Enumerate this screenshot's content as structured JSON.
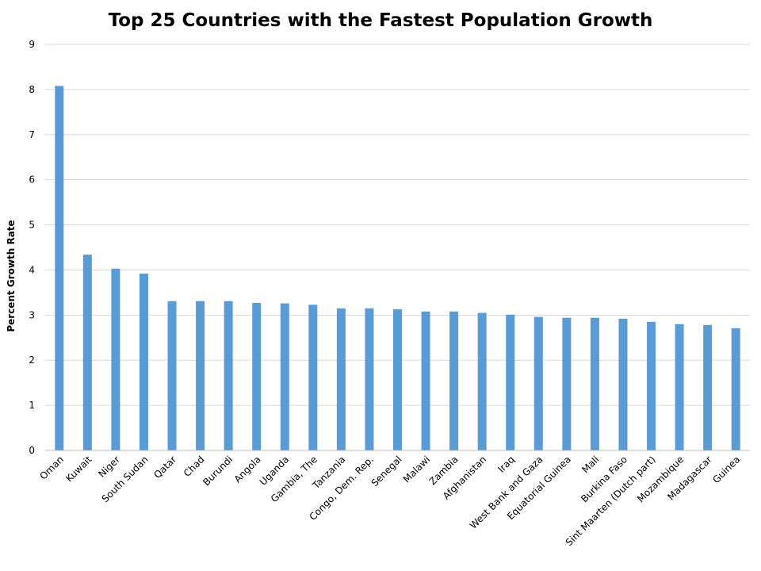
{
  "chart_data": {
    "type": "bar",
    "title": "Top 25 Countries with the Fastest Population Growth",
    "xlabel": "",
    "ylabel": "Percent Growth Rate",
    "ylim": [
      0,
      9
    ],
    "yticks": [
      0,
      1,
      2,
      3,
      4,
      5,
      6,
      7,
      8,
      9
    ],
    "grid": true,
    "bar_color": "#5b9bd5",
    "categories": [
      "Oman",
      "Kuwait",
      "Niger",
      "South Sudan",
      "Qatar",
      "Chad",
      "Burundi",
      "Angola",
      "Uganda",
      "Gambia, The",
      "Tanzania",
      "Congo, Dem. Rep.",
      "Senegal",
      "Malawi",
      "Zambia",
      "Afghanistan",
      "Iraq",
      "West Bank and Gaza",
      "Equatorial Guinea",
      "Mali",
      "Burkina Faso",
      "Sint Maarten (Dutch part)",
      "Mozambique",
      "Madagascar",
      "Guinea"
    ],
    "values": [
      8.08,
      4.34,
      4.03,
      3.92,
      3.31,
      3.31,
      3.31,
      3.27,
      3.26,
      3.23,
      3.15,
      3.15,
      3.13,
      3.08,
      3.08,
      3.05,
      3.01,
      2.96,
      2.94,
      2.94,
      2.92,
      2.85,
      2.8,
      2.78,
      2.71
    ]
  }
}
